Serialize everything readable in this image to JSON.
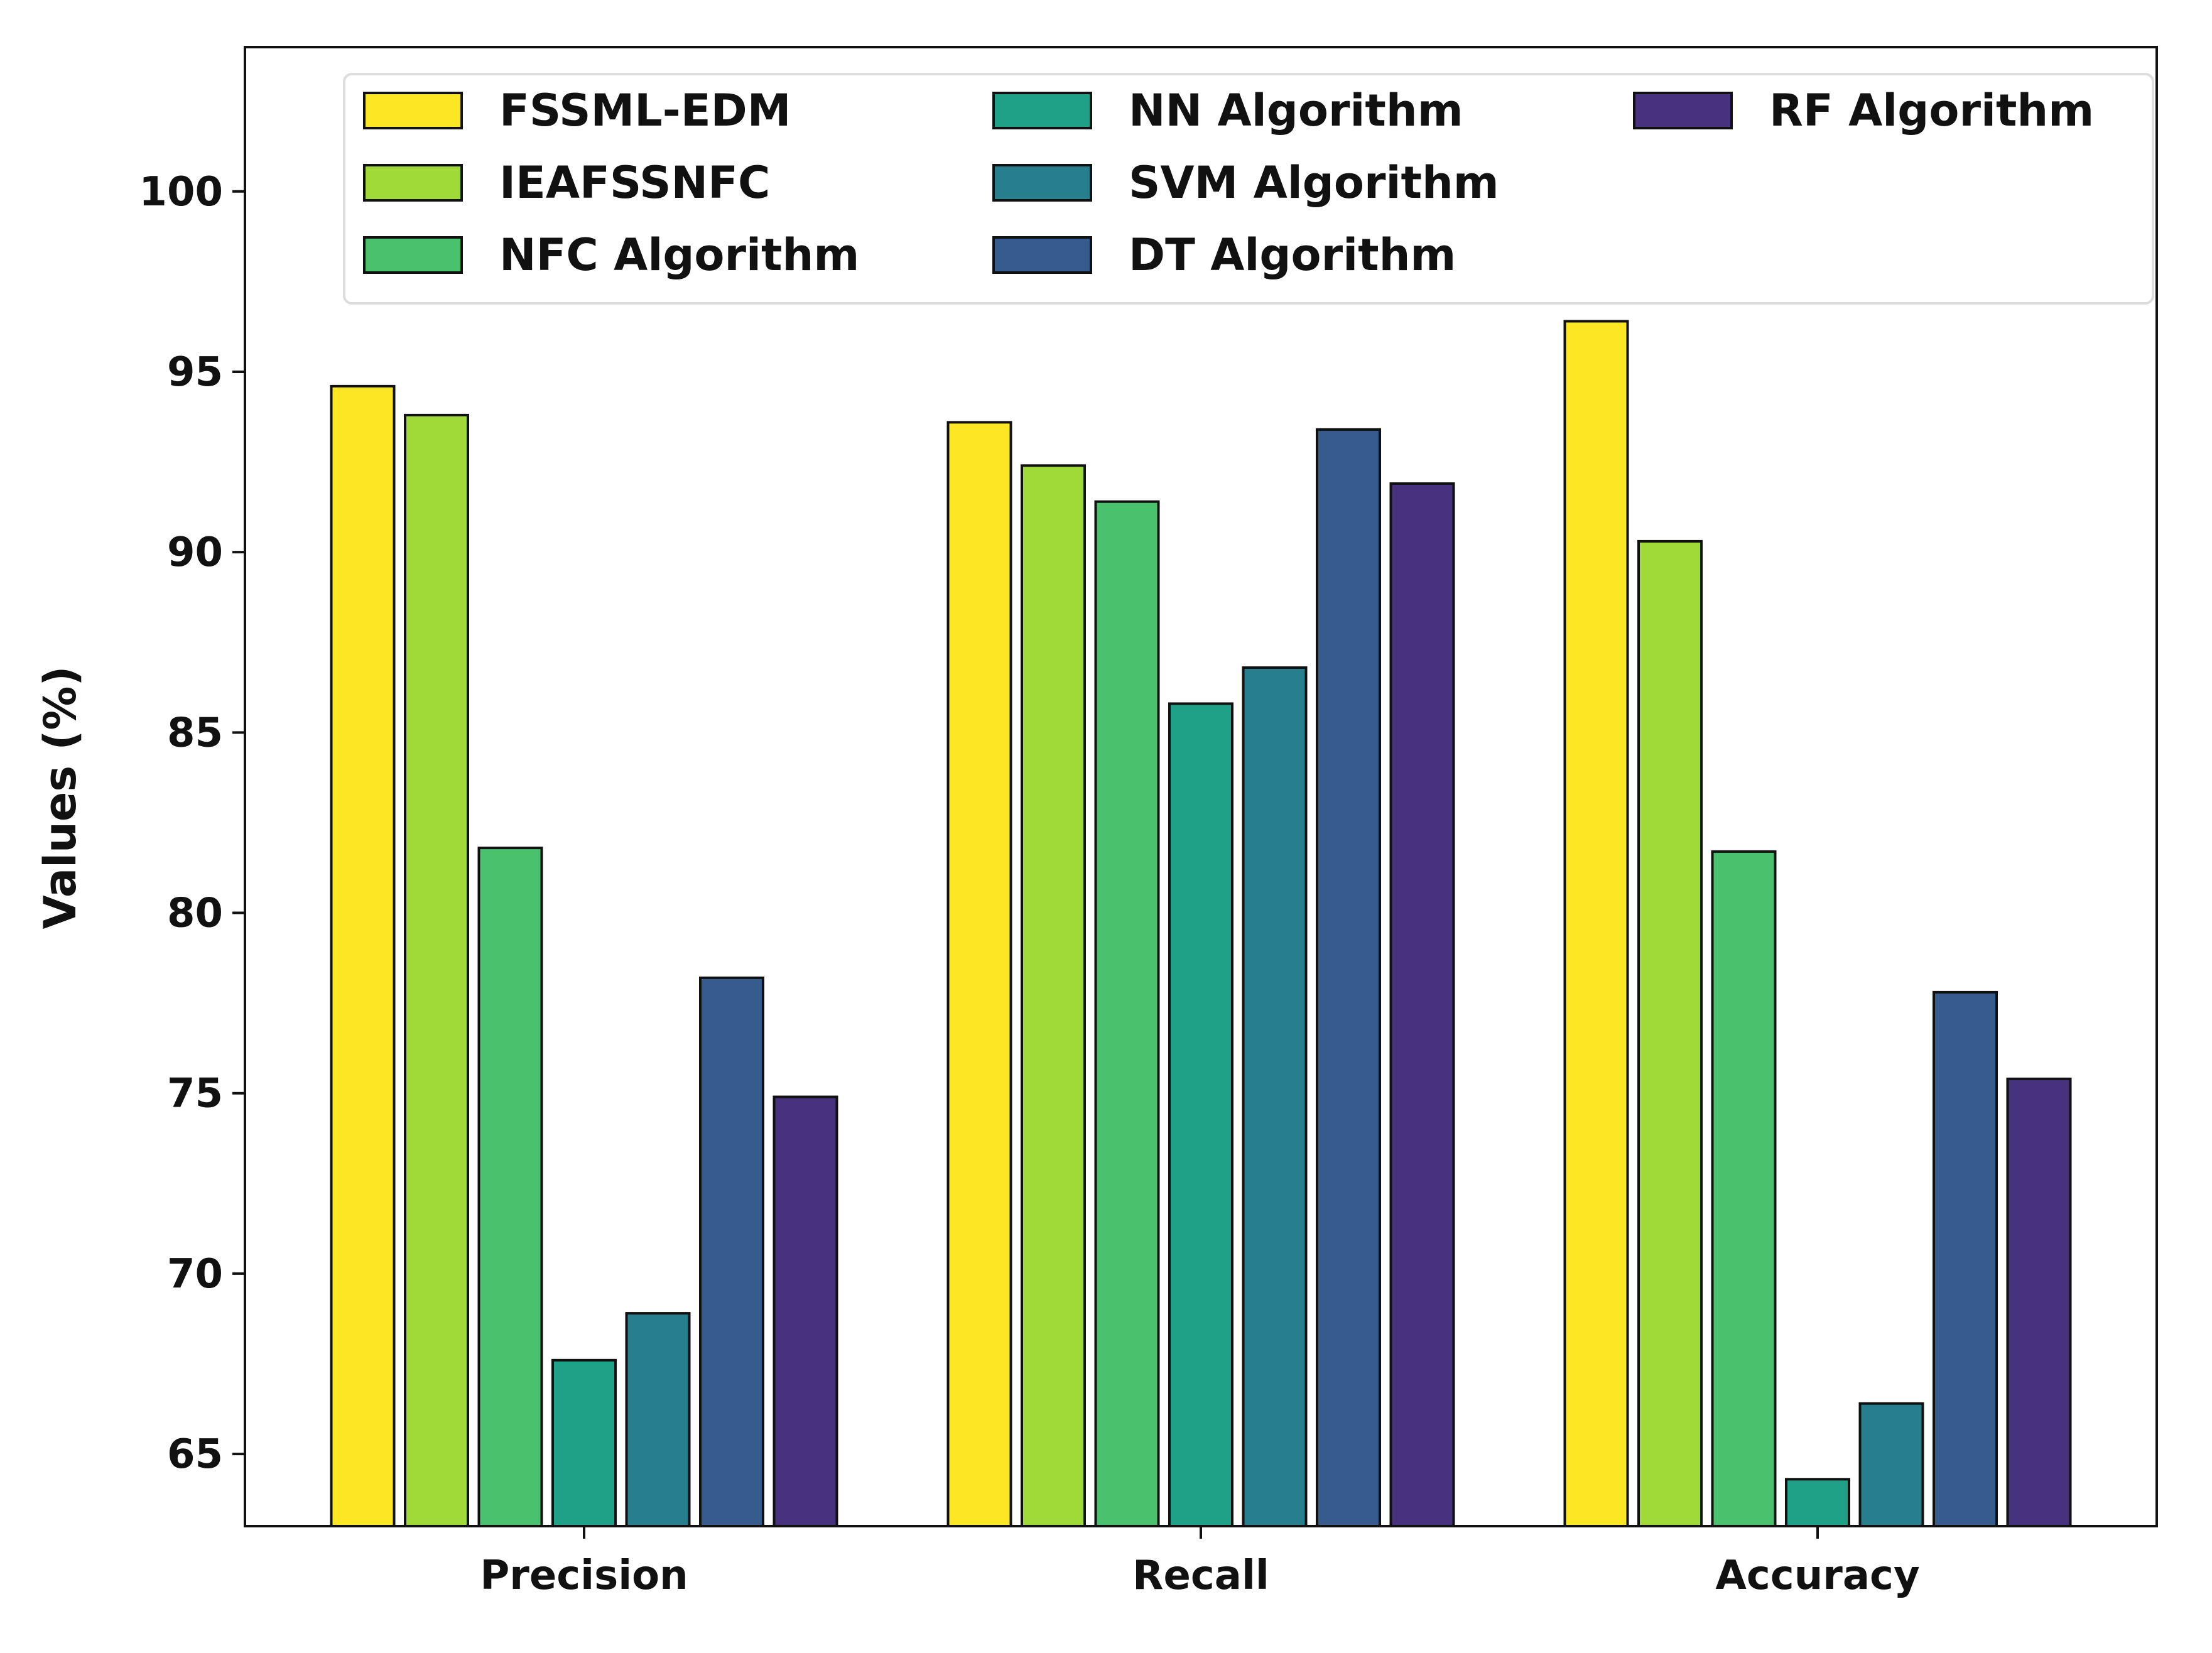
{
  "chart_data": {
    "type": "bar",
    "title": "",
    "xlabel": "",
    "ylabel": "Values (%)",
    "categories": [
      "Precision",
      "Recall",
      "Accuracy"
    ],
    "ylim": [
      63,
      104
    ],
    "yticks": [
      65,
      70,
      75,
      80,
      85,
      90,
      95,
      100
    ],
    "grid": false,
    "legend_position": "top",
    "legend_columns": 3,
    "series": [
      {
        "name": "FSSML-EDM",
        "color": "#fde725",
        "values": [
          94.6,
          93.6,
          96.4
        ]
      },
      {
        "name": "IEAFSSNFC",
        "color": "#a0da39",
        "values": [
          93.8,
          92.4,
          90.3
        ]
      },
      {
        "name": "NFC Algorithm",
        "color": "#4ac16d",
        "values": [
          81.8,
          91.4,
          81.7
        ]
      },
      {
        "name": "NN Algorithm",
        "color": "#1fa187",
        "values": [
          67.6,
          85.8,
          64.3
        ]
      },
      {
        "name": "SVM Algorithm",
        "color": "#277f8e",
        "values": [
          68.9,
          86.8,
          66.4
        ]
      },
      {
        "name": "DT Algorithm",
        "color": "#365c8d",
        "values": [
          78.2,
          93.4,
          77.8
        ]
      },
      {
        "name": "RF Algorithm",
        "color": "#46327e",
        "values": [
          74.9,
          91.9,
          75.4
        ]
      }
    ]
  },
  "colors": {
    "axis": "#111111",
    "bar_edge": "#111111",
    "legend_border": "#dddddd",
    "background": "#ffffff"
  }
}
